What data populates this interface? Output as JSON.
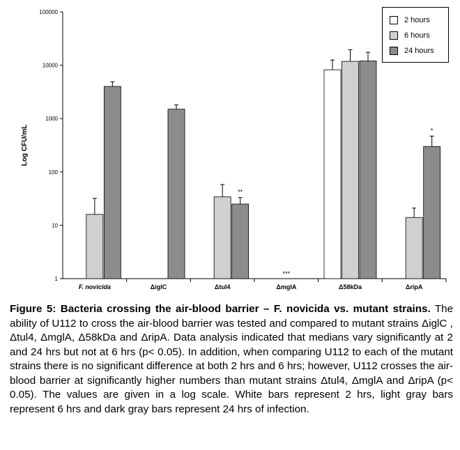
{
  "chart_data": {
    "type": "bar",
    "scale": "log",
    "ylabel": "Log CFU/mL",
    "ylim": [
      1,
      100000
    ],
    "yticks": [
      1,
      10,
      100,
      1000,
      10000,
      100000
    ],
    "ytick_labels": [
      "1",
      "10",
      "100",
      "1000",
      "10000",
      "100000"
    ],
    "categories": [
      "F. novicida",
      "ΔiglC",
      "Δtul4",
      "ΔmglA",
      "Δ58kDa",
      "ΔripA"
    ],
    "series": [
      {
        "name": "2 hours",
        "color": "#ffffff",
        "values": [
          null,
          null,
          null,
          null,
          8200,
          null
        ],
        "errors": [
          null,
          null,
          null,
          null,
          12500,
          null
        ]
      },
      {
        "name": "6 hours",
        "color": "#d0d0d0",
        "values": [
          16,
          null,
          34,
          null,
          11800,
          14
        ],
        "errors": [
          32,
          null,
          58,
          null,
          19500,
          21
        ]
      },
      {
        "name": "24 hours",
        "color": "#8c8c8c",
        "values": [
          4000,
          1500,
          25,
          null,
          12000,
          300
        ],
        "errors": [
          4900,
          1800,
          33,
          null,
          17500,
          470
        ]
      }
    ],
    "annotations": [
      {
        "category": "Δtul4",
        "text": "**"
      },
      {
        "category": "ΔmglA",
        "text": "***"
      },
      {
        "category": "ΔripA",
        "text": "*"
      }
    ],
    "legend": {
      "position": "top-right",
      "entries": [
        "2 hours",
        "6 hours",
        "24 hours"
      ]
    }
  },
  "caption": {
    "title": "Figure 5: Bacteria crossing the air-blood barrier – F. novicida vs. mutant strains.",
    "body": "The ability of U112 to cross the air-blood barrier was tested and compared to mutant strains ΔiglC , Δtul4, ΔmglA, Δ58kDa and ΔripA. Data analysis indicated that medians vary significantly at 2 and 24 hrs but not at 6 hrs (p< 0.05). In addition, when comparing U112 to each of the mutant strains there is no significant difference at both 2 hrs and 6 hrs; however, U112 crosses the air-blood barrier at significantly higher numbers than mutant strains Δtul4, ΔmglA and ΔripA (p< 0.05). The values are given in a log scale. White bars represent 2 hrs, light gray bars represent 6 hrs and dark gray bars represent 24 hrs of infection."
  }
}
